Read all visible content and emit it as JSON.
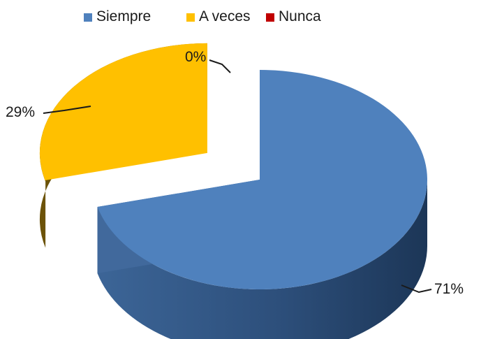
{
  "chart_data": {
    "type": "pie",
    "style": "3d-exploded",
    "title": "",
    "legend_position": "top",
    "categories": [
      "Siempre",
      "A veces",
      "Nunca"
    ],
    "values": [
      71,
      29,
      0
    ],
    "labels": [
      "71%",
      "29%",
      "0%"
    ],
    "colors": [
      "#4f81bd",
      "#ffc000",
      "#c00000"
    ]
  }
}
